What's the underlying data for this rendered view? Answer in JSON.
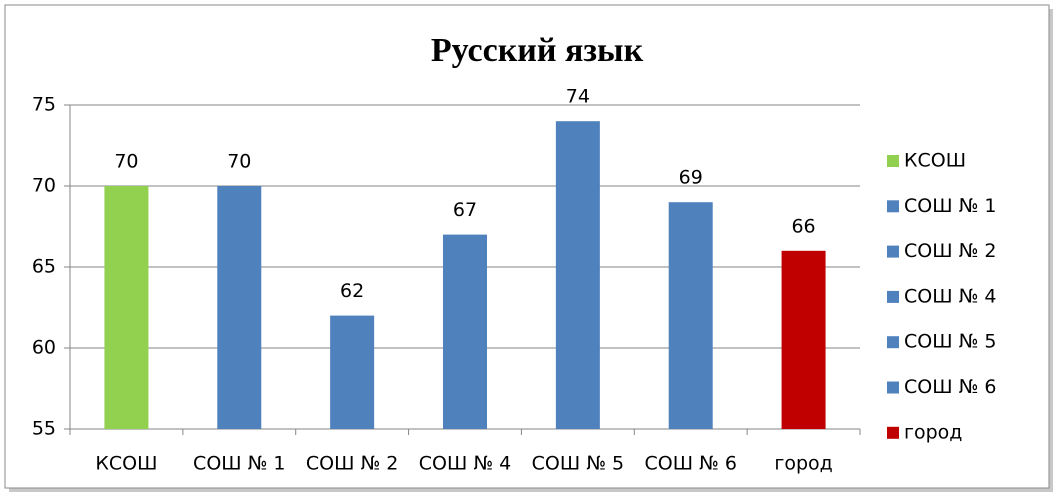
{
  "chart_data": {
    "type": "bar",
    "title": "Русский язык",
    "categories": [
      "КСОШ",
      "СОШ № 1",
      "СОШ № 2",
      "СОШ № 4",
      "СОШ № 5",
      "СОШ № 6",
      "город"
    ],
    "values": [
      70,
      70,
      62,
      67,
      74,
      69,
      66
    ],
    "colors": [
      "#92d050",
      "#4f81bd",
      "#4f81bd",
      "#4f81bd",
      "#4f81bd",
      "#4f81bd",
      "#c00000"
    ],
    "ylim": [
      55,
      75
    ],
    "yticks": [
      55,
      60,
      65,
      70,
      75
    ],
    "grid": true,
    "legend": "right"
  }
}
